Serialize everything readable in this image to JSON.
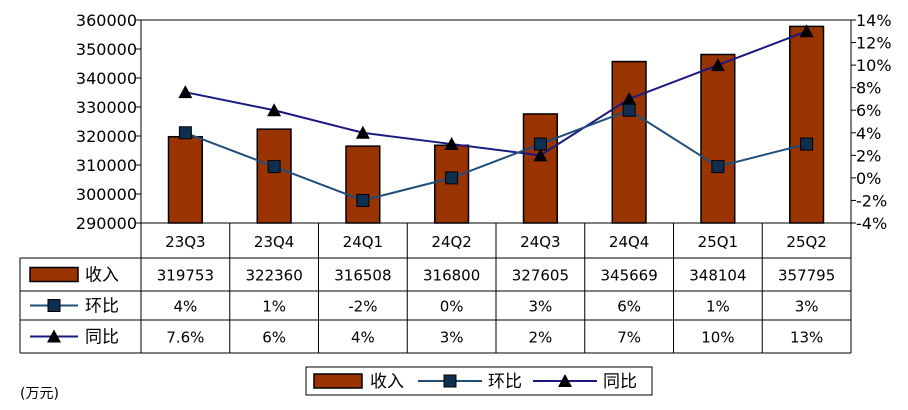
{
  "chart_data": {
    "type": "bar+line",
    "categories": [
      "23Q3",
      "23Q4",
      "24Q1",
      "24Q2",
      "24Q3",
      "24Q4",
      "25Q1",
      "25Q2"
    ],
    "series": [
      {
        "name": "收入",
        "kind": "bar",
        "axis": "left",
        "values": [
          319753,
          322360,
          316508,
          316800,
          327605,
          345669,
          348104,
          357795
        ],
        "labels": [
          "319753",
          "322360",
          "316508",
          "316800",
          "327605",
          "345669",
          "348104",
          "357795"
        ]
      },
      {
        "name": "环比",
        "kind": "line",
        "marker": "square",
        "axis": "right",
        "values": [
          4,
          1,
          -2,
          0,
          3,
          6,
          1,
          3
        ],
        "labels": [
          "4%",
          "1%",
          "-2%",
          "0%",
          "3%",
          "6%",
          "1%",
          "3%"
        ]
      },
      {
        "name": "同比",
        "kind": "line",
        "marker": "triangle",
        "axis": "right",
        "values": [
          7.6,
          6,
          4,
          3,
          2,
          7,
          10,
          13
        ],
        "labels": [
          "7.6%",
          "6%",
          "4%",
          "3%",
          "2%",
          "7%",
          "10%",
          "13%"
        ]
      }
    ],
    "left_axis": {
      "ylim": [
        290000,
        360000
      ],
      "ticks": [
        290000,
        300000,
        310000,
        320000,
        330000,
        340000,
        350000,
        360000
      ]
    },
    "right_axis": {
      "ylim": [
        -4,
        14
      ],
      "ticks": [
        -4,
        -2,
        0,
        2,
        4,
        6,
        8,
        10,
        12,
        14
      ],
      "tick_labels": [
        "-4%",
        "-2%",
        "0%",
        "2%",
        "4%",
        "6%",
        "8%",
        "10%",
        "12%",
        "14%"
      ]
    },
    "unit_label": "(万元)",
    "legend_position": "bottom-center",
    "grid": false
  },
  "colors": {
    "bar_fill": "#993300",
    "bar_stroke": "#000000",
    "mom_line": "#1f4e79",
    "mom_marker": "#0f2f4f",
    "yoy_line": "#1a1a80",
    "yoy_marker": "#000000"
  }
}
